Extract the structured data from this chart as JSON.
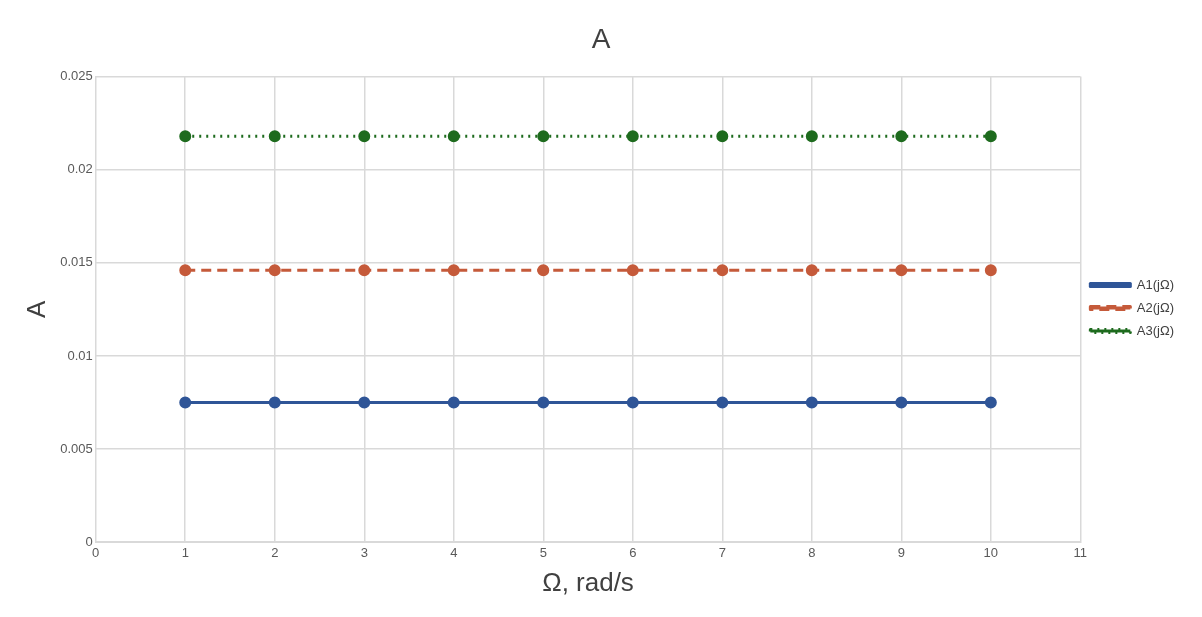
{
  "chart_data": {
    "type": "line",
    "title": "A",
    "xlabel": "Ω, rad/s",
    "ylabel": "A",
    "x": [
      1,
      2,
      3,
      4,
      5,
      6,
      7,
      8,
      9,
      10
    ],
    "series": [
      {
        "name": "A1(jΩ)",
        "color": "#2f5597",
        "line_style": "solid",
        "values": [
          0.0075,
          0.0075,
          0.0075,
          0.0075,
          0.0075,
          0.0075,
          0.0075,
          0.0075,
          0.0075,
          0.0075
        ]
      },
      {
        "name": "A2(jΩ)",
        "color": "#c55a3a",
        "line_style": "dashed",
        "values": [
          0.0146,
          0.0146,
          0.0146,
          0.0146,
          0.0146,
          0.0146,
          0.0146,
          0.0146,
          0.0146,
          0.0146
        ]
      },
      {
        "name": "A3(jΩ)",
        "color": "#1e6b1e",
        "line_style": "dotted",
        "values": [
          0.0218,
          0.0218,
          0.0218,
          0.0218,
          0.0218,
          0.0218,
          0.0218,
          0.0218,
          0.0218,
          0.0218
        ]
      }
    ],
    "xlim": [
      0,
      11
    ],
    "xticks": [
      0,
      1,
      2,
      3,
      4,
      5,
      6,
      7,
      8,
      9,
      10,
      11
    ],
    "ylim": [
      0,
      0.025
    ],
    "yticks": [
      0,
      0.005,
      0.01,
      0.015,
      0.02,
      0.025
    ],
    "grid": true,
    "legend": "right",
    "marker": "circle"
  }
}
